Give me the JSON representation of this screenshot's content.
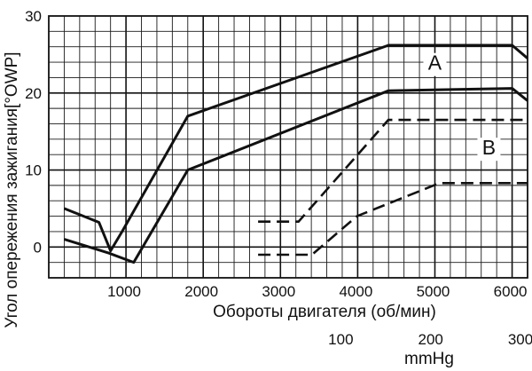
{
  "chart_data": {
    "type": "line",
    "title": "",
    "xlabel": "Обороты двигателя (об/мин)",
    "ylabel": "Угол опережения зажигания[°OWP]",
    "xlim": [
      0,
      6200
    ],
    "ylim": [
      -4,
      30
    ],
    "x_ticks": [
      1000,
      2000,
      3000,
      4000,
      5000,
      6000
    ],
    "y_ticks": [
      0,
      10,
      20,
      30
    ],
    "x_tick_labels": [
      "1000",
      "2000",
      "3000",
      "4000",
      "5000",
      "6000"
    ],
    "y_tick_labels": [
      "0",
      "10",
      "20",
      "30"
    ],
    "secondary_x_axis": {
      "label": "mmHg",
      "tick_labels": [
        "100",
        "200",
        "300"
      ],
      "ticks": [
        100,
        200,
        300
      ],
      "xlim_mmHg": [
        -233,
        300
      ]
    },
    "grid": true,
    "series": [
      {
        "name": "A",
        "style": "solid",
        "axis": "rpm",
        "x": [
          200,
          650,
          800,
          950,
          1800,
          4400,
          6000,
          6200
        ],
        "y": [
          5,
          3.2,
          -0.5,
          2,
          17,
          26.2,
          26.2,
          24.5
        ]
      },
      {
        "name": "A",
        "style": "solid",
        "axis": "rpm",
        "x": [
          200,
          780,
          1100,
          1800,
          4400,
          6000,
          6200
        ],
        "y": [
          1,
          -0.8,
          -2,
          10,
          20.3,
          20.6,
          19
        ]
      },
      {
        "name": "B",
        "style": "dashed",
        "axis": "mmHg",
        "x": [
          0,
          45,
          145,
          208,
          300
        ],
        "y": [
          3.3,
          3.3,
          16.5,
          16.5,
          16.5
        ]
      },
      {
        "name": "B",
        "style": "dashed",
        "axis": "mmHg",
        "x": [
          0,
          60,
          110,
          202,
          300
        ],
        "y": [
          -1,
          -1,
          4,
          8.3,
          8.3
        ]
      }
    ],
    "annotations": [
      {
        "text": "A",
        "x": 5000,
        "y": 23
      },
      {
        "text": "B",
        "x": 5700,
        "y": 12
      }
    ]
  }
}
